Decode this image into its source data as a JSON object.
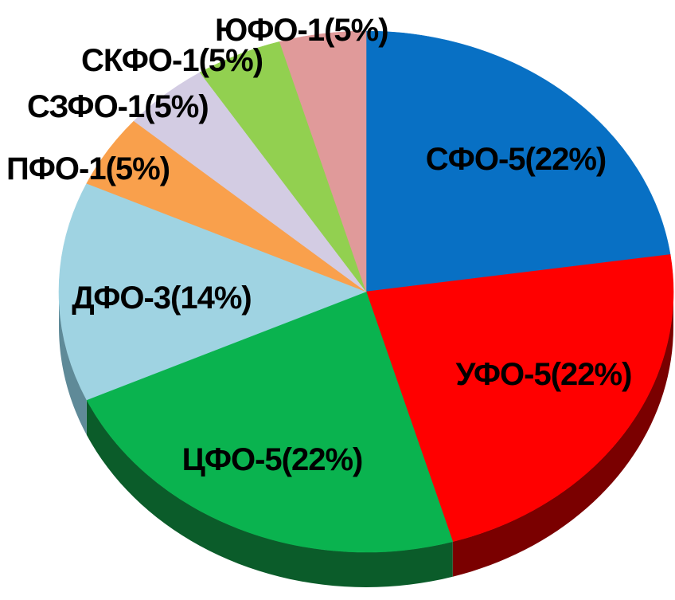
{
  "chart_data": {
    "type": "pie",
    "style": "3d",
    "start": "top, clockwise",
    "grid": false,
    "legend": "none",
    "slices": [
      {
        "district": "СФО",
        "count": 5,
        "percent": 22,
        "label": "СФО-5(22%)",
        "color": "#0870c4",
        "side_color": "#043f73"
      },
      {
        "district": "УФО",
        "count": 5,
        "percent": 22,
        "label": "УФО-5(22%)",
        "color": "#ff0000",
        "side_color": "#7a0000"
      },
      {
        "district": "ЦФО",
        "count": 5,
        "percent": 22,
        "label": "ЦФО-5(22%)",
        "color": "#0ab34f",
        "side_color": "#0b5c2a"
      },
      {
        "district": "ДФО",
        "count": 3,
        "percent": 14,
        "label": "ДФО-3(14%)",
        "color": "#9fd3e2",
        "side_color": "#5f8a98"
      },
      {
        "district": "ПФО",
        "count": 1,
        "percent": 5,
        "label": "ПФО-1(5%)",
        "color": "#f9a04c",
        "side_color": "#a8652a"
      },
      {
        "district": "СЗФО",
        "count": 1,
        "percent": 5,
        "label": "СЗФО-1(5%)",
        "color": "#d3cce3",
        "side_color": "#8a8498"
      },
      {
        "district": "СКФО",
        "count": 1,
        "percent": 5,
        "label": "СКФО-1(5%)",
        "color": "#92d050",
        "side_color": "#5c8a2e"
      },
      {
        "district": "ЮФО",
        "count": 1,
        "percent": 5,
        "label": "ЮФО-1(5%)",
        "color": "#e09a9a",
        "side_color": "#946060"
      }
    ]
  }
}
